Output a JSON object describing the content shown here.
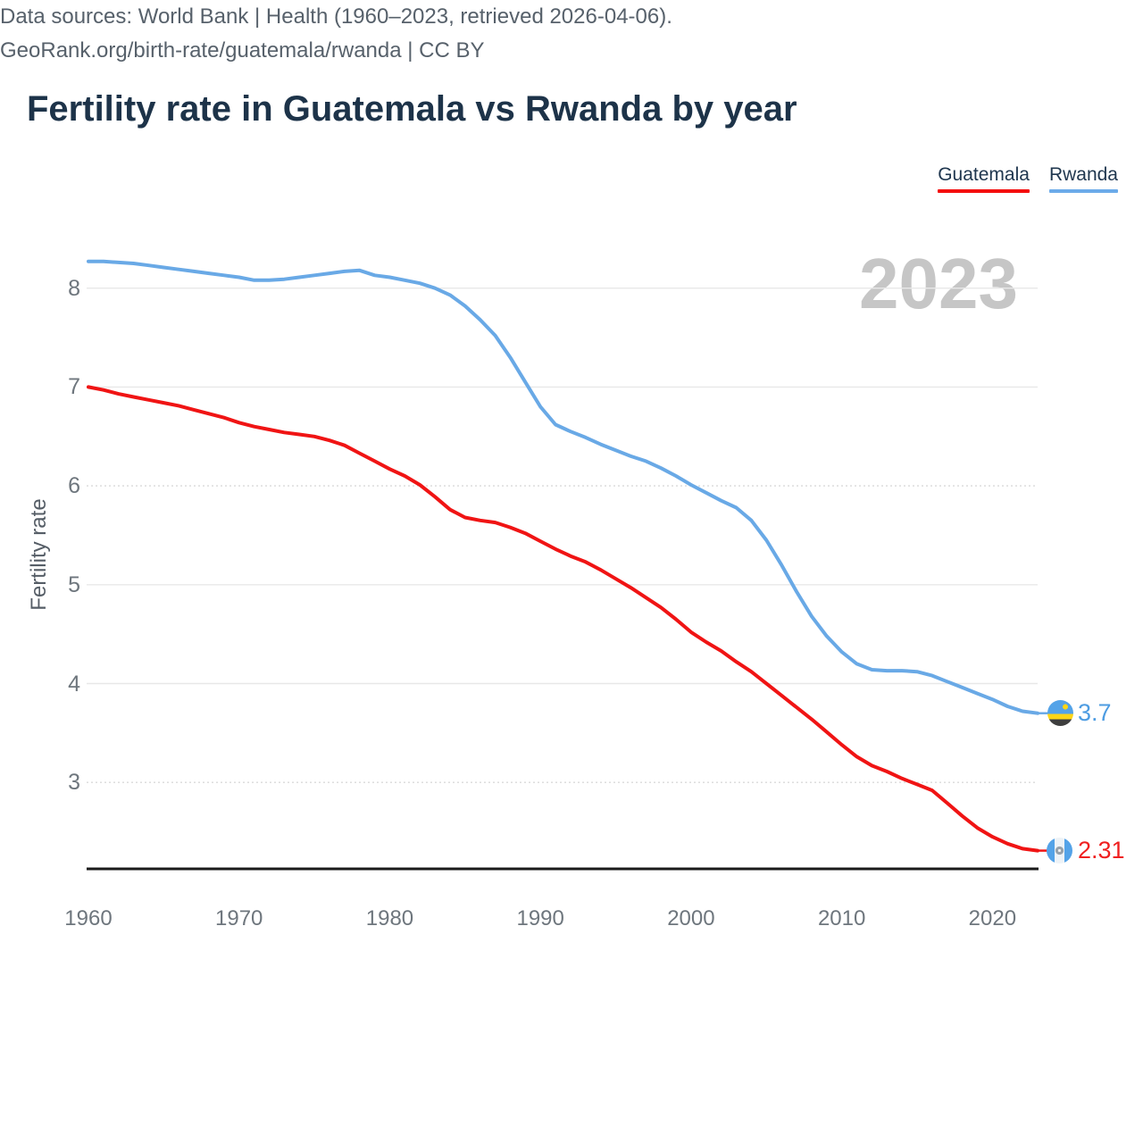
{
  "title": "Fertility rate in Guatemala vs Rwanda by year",
  "watermark": "2023",
  "legend": [
    {
      "label": "Guatemala",
      "color": "#f40b0b"
    },
    {
      "label": "Rwanda",
      "color": "#6cabe9"
    }
  ],
  "y_axis": {
    "label": "Fertility rate",
    "ticks": [
      8,
      7,
      6,
      5,
      4,
      3
    ]
  },
  "x_axis": {
    "ticks": [
      1960,
      1970,
      1980,
      1990,
      2000,
      2010,
      2020
    ]
  },
  "end_labels": {
    "rwanda": {
      "series": "Rwanda",
      "value": "3.7",
      "color": "#4d9ce2",
      "flag": "rwanda-flag"
    },
    "guatemala": {
      "series": "Guatemala",
      "value": "2.31",
      "color": "#ef2020",
      "flag": "guatemala-flag"
    }
  },
  "footer": {
    "line1": "Data sources: World Bank | Health (1960–2023, retrieved 2026-04-06).",
    "line2": "GeoRank.org/birth-rate/guatemala/rwanda | CC BY"
  },
  "chart_data": {
    "type": "line",
    "title": "Fertility rate in Guatemala vs Rwanda by year",
    "xlabel": "",
    "ylabel": "Fertility rate",
    "x_range": [
      1960,
      2023
    ],
    "ylim": [
      2.1,
      8.6
    ],
    "grid": true,
    "legend_position": "top-right",
    "annotations": [
      "2023"
    ],
    "x": [
      1960,
      1961,
      1962,
      1963,
      1964,
      1965,
      1966,
      1967,
      1968,
      1969,
      1970,
      1971,
      1972,
      1973,
      1974,
      1975,
      1976,
      1977,
      1978,
      1979,
      1980,
      1981,
      1982,
      1983,
      1984,
      1985,
      1986,
      1987,
      1988,
      1989,
      1990,
      1991,
      1992,
      1993,
      1994,
      1995,
      1996,
      1997,
      1998,
      1999,
      2000,
      2001,
      2002,
      2003,
      2004,
      2005,
      2006,
      2007,
      2008,
      2009,
      2010,
      2011,
      2012,
      2013,
      2014,
      2015,
      2016,
      2017,
      2018,
      2019,
      2020,
      2021,
      2022,
      2023
    ],
    "series": [
      {
        "name": "Guatemala",
        "color": "#f01414",
        "end_value": 2.31,
        "values": [
          7.0,
          6.97,
          6.93,
          6.9,
          6.87,
          6.84,
          6.81,
          6.77,
          6.73,
          6.69,
          6.64,
          6.6,
          6.57,
          6.54,
          6.52,
          6.5,
          6.46,
          6.41,
          6.33,
          6.25,
          6.17,
          6.1,
          6.01,
          5.89,
          5.76,
          5.68,
          5.65,
          5.63,
          5.58,
          5.52,
          5.44,
          5.36,
          5.29,
          5.23,
          5.15,
          5.06,
          4.97,
          4.87,
          4.77,
          4.65,
          4.52,
          4.42,
          4.33,
          4.22,
          4.12,
          4.0,
          3.88,
          3.76,
          3.64,
          3.51,
          3.38,
          3.26,
          3.17,
          3.11,
          3.04,
          2.98,
          2.92,
          2.79,
          2.66,
          2.54,
          2.45,
          2.38,
          2.33,
          2.31
        ]
      },
      {
        "name": "Rwanda",
        "color": "#69a9e6",
        "end_value": 3.7,
        "values": [
          8.27,
          8.27,
          8.26,
          8.25,
          8.23,
          8.21,
          8.19,
          8.17,
          8.15,
          8.13,
          8.11,
          8.08,
          8.08,
          8.09,
          8.11,
          8.13,
          8.15,
          8.17,
          8.18,
          8.13,
          8.11,
          8.08,
          8.05,
          8.0,
          7.93,
          7.82,
          7.68,
          7.52,
          7.3,
          7.05,
          6.8,
          6.62,
          6.55,
          6.49,
          6.42,
          6.36,
          6.3,
          6.25,
          6.18,
          6.1,
          6.01,
          5.93,
          5.85,
          5.78,
          5.65,
          5.45,
          5.2,
          4.93,
          4.68,
          4.48,
          4.32,
          4.2,
          4.14,
          4.13,
          4.13,
          4.12,
          4.08,
          4.02,
          3.96,
          3.9,
          3.84,
          3.77,
          3.72,
          3.7
        ]
      }
    ]
  }
}
